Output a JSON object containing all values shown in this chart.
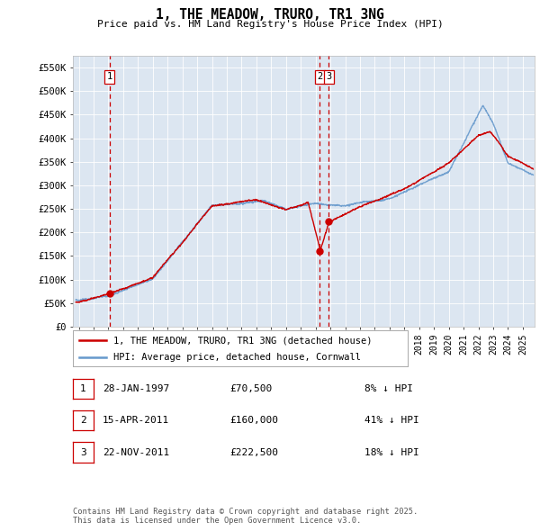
{
  "title": "1, THE MEADOW, TRURO, TR1 3NG",
  "subtitle": "Price paid vs. HM Land Registry's House Price Index (HPI)",
  "legend_line1": "1, THE MEADOW, TRURO, TR1 3NG (detached house)",
  "legend_line2": "HPI: Average price, detached house, Cornwall",
  "footnote": "Contains HM Land Registry data © Crown copyright and database right 2025.\nThis data is licensed under the Open Government Licence v3.0.",
  "table": [
    {
      "num": "1",
      "date": "28-JAN-1997",
      "price": "£70,500",
      "change": "8% ↓ HPI"
    },
    {
      "num": "2",
      "date": "15-APR-2011",
      "price": "£160,000",
      "change": "41% ↓ HPI"
    },
    {
      "num": "3",
      "date": "22-NOV-2011",
      "price": "£222,500",
      "change": "18% ↓ HPI"
    }
  ],
  "vline1_year": 1997.075,
  "vline2_year": 2011.29,
  "vline3_year": 2011.9,
  "marker1": {
    "year": 1997.075,
    "value": 70500
  },
  "marker2": {
    "year": 2011.29,
    "value": 160000
  },
  "marker3": {
    "year": 2011.9,
    "value": 222500
  },
  "hpi_color": "#6699cc",
  "price_color": "#cc0000",
  "vline_color": "#cc0000",
  "bg_color": "#dce6f1",
  "grid_color": "#ffffff",
  "ylim": [
    0,
    575000
  ],
  "yticks": [
    0,
    50000,
    100000,
    150000,
    200000,
    250000,
    300000,
    350000,
    400000,
    450000,
    500000,
    550000
  ],
  "xlim_left": 1994.6,
  "xlim_right": 2025.8,
  "xtick_start": 1995,
  "xtick_end": 2025
}
